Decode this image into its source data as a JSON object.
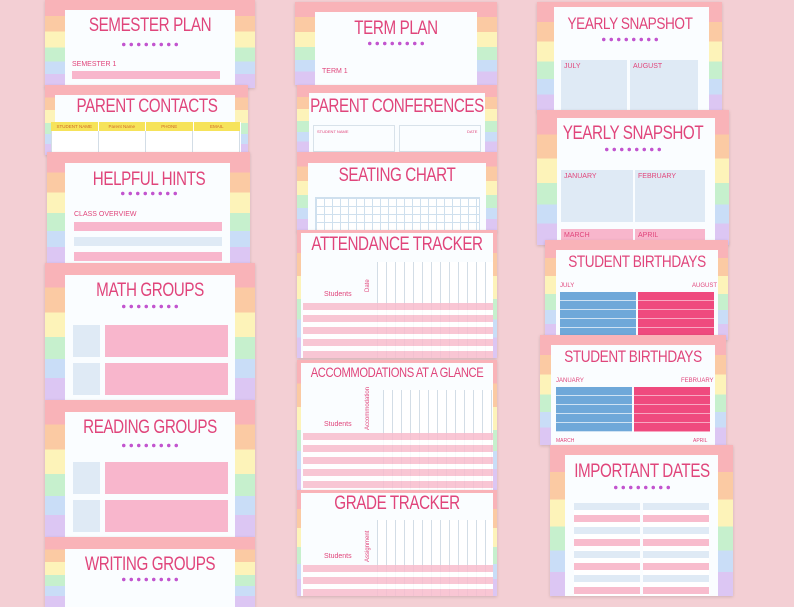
{
  "cards": {
    "semester_plan": {
      "title": "SEMESTER PLAN",
      "label": "SEMESTER 1"
    },
    "parent_contacts": {
      "title": "PARENT CONTACTS",
      "columns": [
        "STUDENT NAME",
        "Parent Name",
        "PHONE",
        "EMAIL"
      ]
    },
    "helpful_hints": {
      "title": "HELPFUL HINTS",
      "label": "CLASS OVERVIEW"
    },
    "math_groups": {
      "title": "MATH GROUPS"
    },
    "reading_groups": {
      "title": "READING GROUPS"
    },
    "writing_groups": {
      "title": "WRITING GROUPS"
    },
    "term_plan": {
      "title": "TERM PLAN",
      "label": "TERM 1"
    },
    "parent_conferences": {
      "title": "PARENT CONFERENCES",
      "student_label": "STUDENT NAME",
      "date_label": "DATE"
    },
    "seating_chart": {
      "title": "SEATING CHART"
    },
    "attendance_tracker": {
      "title": "ATTENDANCE TRACKER",
      "row_label": "Students",
      "col_label": "Date"
    },
    "accommodations": {
      "title": "ACCOMMODATIONS AT A GLANCE",
      "row_label": "Students",
      "col_label": "Accommodation"
    },
    "grade_tracker": {
      "title": "GRADE TRACKER",
      "row_label": "Students",
      "col_label": "Assignment"
    },
    "yearly_snapshot_1": {
      "title": "YEARLY SNAPSHOT",
      "months": [
        "JULY",
        "AUGUST"
      ]
    },
    "yearly_snapshot_2": {
      "title": "YEARLY SNAPSHOT",
      "months": [
        "JANUARY",
        "FEBRUARY",
        "MARCH",
        "APRIL"
      ]
    },
    "student_birthdays_1": {
      "title": "STUDENT BIRTHDAYS",
      "months": [
        "JULY",
        "AUGUST"
      ]
    },
    "student_birthdays_2": {
      "title": "STUDENT BIRTHDAYS",
      "months": [
        "JANUARY",
        "FEBRUARY",
        "MARCH",
        "APRIL"
      ]
    },
    "important_dates": {
      "title": "IMPORTANT DATES"
    }
  },
  "colors": {
    "background": "#f3cfd4",
    "title": "#e0457b",
    "dots": "#c255cf",
    "blue": "#6fa8d9",
    "pink": "#ef4a7e"
  }
}
